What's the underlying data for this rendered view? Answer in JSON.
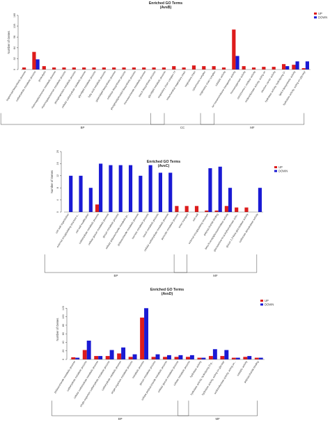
{
  "colors": {
    "up": "#dd1c1c",
    "down": "#1a1ad4",
    "axis": "#444444"
  },
  "legend_labels": {
    "up": "UP",
    "down": "DOWN"
  },
  "chart_data": [
    {
      "type": "bar",
      "title": "Enriched GO Terms",
      "subtitle": "(AvsB)",
      "ylabel": "Number of Genes",
      "yticks": [
        0,
        32,
        64,
        96,
        128,
        160
      ],
      "ylim": [
        0,
        160
      ],
      "legend": "top-right",
      "series": [
        {
          "name": "UP"
        },
        {
          "name": "DOWN"
        }
      ],
      "categories": [
        "isoprenoid biosynthetic process",
        "carbohydrate metabolic process",
        "proteolysis",
        "rhamnogalacturonan metabolic process",
        "rhamnogalacturonan metabolic process",
        "phosphoprotein metabolic process",
        "cellular carbohydrate catabolic process",
        "glycolipid metabolic process",
        "fatty acid metabolic process",
        "galactolipid biosynthetic process",
        "cellulose biosynthetic process",
        "phosphatidylinositol biosynthetic process",
        "monosaccharide metabolic process",
        "starch biosynthetic process",
        "glycolipid metabolic process",
        "respiratory chain complex IV",
        "mitochondrial respiratory chain",
        "respiratory chain",
        "cytochrome complex",
        "respiratory chain complex",
        "catalytic activity",
        "ion transmembrane transporter activity",
        "monooxygenase activity",
        "cytochrome-c oxidase activity",
        "oxidoreductase activity, acting on",
        "electron carrier activity",
        "hydrolase activity, hydrolyzing O-",
        "lipid A biosynthetic activity",
        "hydrolase activity, acting on glycosyl"
      ],
      "up": [
        6,
        52,
        10,
        6,
        6,
        6,
        6,
        6,
        6,
        6,
        6,
        6,
        6,
        6,
        6,
        10,
        6,
        12,
        10,
        10,
        6,
        118,
        10,
        6,
        8,
        8,
        16,
        14,
        4
      ],
      "down": [
        0,
        30,
        0,
        0,
        0,
        0,
        0,
        0,
        0,
        0,
        0,
        0,
        0,
        0,
        0,
        0,
        0,
        0,
        0,
        0,
        0,
        40,
        0,
        0,
        0,
        0,
        10,
        24,
        24
      ],
      "groups": [
        {
          "name": "BP",
          "start": 0,
          "end": 14
        },
        {
          "name": "CC",
          "start": 15,
          "end": 19
        },
        {
          "name": "MF",
          "start": 20,
          "end": 28
        }
      ]
    },
    {
      "type": "bar",
      "title": "Enriched GO Terms",
      "subtitle": "(AvsC)",
      "ylabel": "Number of Genes",
      "yticks": [
        0,
        4,
        8,
        12,
        16,
        20
      ],
      "ylim": [
        0,
        20
      ],
      "legend": "top-right",
      "series": [
        {
          "name": "UP"
        },
        {
          "name": "DOWN"
        }
      ],
      "categories": [
        "cell wall organization",
        "external encapsulating structure o...",
        "cell wall modification",
        "carbohydrate metabolic process",
        "cellular glucan metabolic process",
        "glucan metabolic process",
        "cellular polysaccharide metabolic pr...",
        "polysaccharide metabolic process",
        "sucrose metabolic process",
        "starch metabolic process",
        "cellular carbohydrate metabolic process",
        "pyruvate metabolic process",
        "anion transport",
        "cell wall",
        "external encapsulating structure",
        "polysaccharide binding",
        "beta-N-acetylglucosaminidase activity",
        "glucosamine-N-acetyltransferase activ...",
        "glucan 1,3-beta-glucosidase activity",
        "carbonate dehydratase activity"
      ],
      "up": [
        0,
        0,
        0,
        2.5,
        0,
        0,
        0,
        0,
        0,
        0,
        0,
        2,
        2,
        2,
        0.5,
        0.5,
        2,
        1.5,
        1.5,
        0
      ],
      "down": [
        12,
        12,
        8,
        16,
        15.5,
        15.5,
        15.5,
        12,
        15.5,
        13,
        13,
        0,
        0,
        0,
        14.5,
        15,
        8,
        0,
        0,
        8
      ],
      "groups": [
        {
          "name": "BP",
          "start": 0,
          "end": 12
        },
        {
          "name": "MF",
          "start": 13,
          "end": 19
        }
      ]
    },
    {
      "type": "bar",
      "title": "Enriched GO Terms",
      "subtitle": "(AvsD)",
      "ylabel": "Number of Genes",
      "yticks": [
        0,
        20,
        40,
        60,
        80,
        100,
        120
      ],
      "ylim": [
        0,
        140
      ],
      "legend": "top-right",
      "series": [
        {
          "name": "UP"
        },
        {
          "name": "DOWN"
        }
      ],
      "categories": [
        "polysaccharide metabolic process",
        "carbohydrate metabolic process",
        "cellular carbohydrate metabolic process",
        "single-organism carbohydrate metabolic process",
        "carbohydrate catabolic process",
        "single-organism metabolic process",
        "metabolic process",
        "glucan metabolic process",
        "cellular polysaccharide metabolic process",
        "cellular glucan metabolic process",
        "cellular metabolic process",
        "hydrolase activity",
        "hydrolase activity, hydrolyzing O-g...",
        "hydrolase activity, acting on glycosyl",
        "oxidoreductase activity, acting on...",
        "catalytic activity",
        "polysaccharide binding"
      ],
      "up": [
        5,
        22,
        8,
        8,
        14,
        6,
        98,
        6,
        6,
        6,
        6,
        4,
        8,
        8,
        4,
        6,
        4
      ],
      "down": [
        4,
        44,
        8,
        22,
        28,
        12,
        120,
        12,
        10,
        10,
        10,
        4,
        24,
        22,
        4,
        8,
        4
      ],
      "groups": [
        {
          "name": "BP",
          "start": 0,
          "end": 10
        },
        {
          "name": "MF",
          "start": 11,
          "end": 16
        }
      ]
    }
  ]
}
